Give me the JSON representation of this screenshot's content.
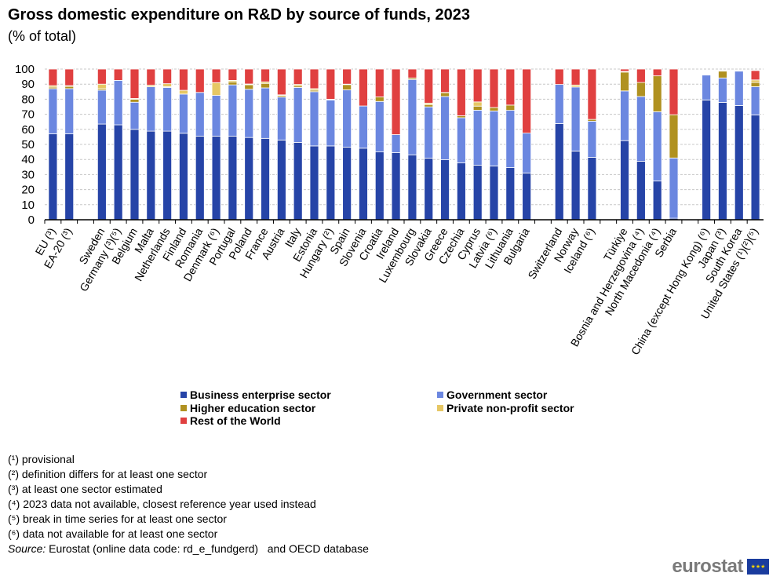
{
  "title": "Gross domestic expenditure on R&D by source of funds, 2023",
  "subtitle": "(% of total)",
  "colors": {
    "business": "#2644A7",
    "government": "#6B87E0",
    "higher_education": "#B09120",
    "private_non_profit": "#E6C764",
    "rest_of_world": "#E04040"
  },
  "chart_data": {
    "type": "bar",
    "stacked": true,
    "title": "Gross domestic expenditure on R&D by source of funds, 2023",
    "subtitle": "(% of total)",
    "ylim": [
      0,
      100
    ],
    "yticks": [
      0,
      10,
      20,
      30,
      40,
      50,
      60,
      70,
      80,
      90,
      100
    ],
    "grid": true,
    "legend_position": "bottom",
    "categories": [
      "EU (³)",
      "EA-20 (³)",
      "",
      "Sweden",
      "Germany (³)(⁵)",
      "Belgium",
      "Malta",
      "Netherlands",
      "Finland",
      "Romania",
      "Denmark (⁶)",
      "Portugal",
      "Poland",
      "France",
      "Austria",
      "Italy",
      "Estonia",
      "Hungary (²)",
      "Spain",
      "Slovenia",
      "Croatia",
      "Ireland",
      "Luxembourg",
      "Slovakia",
      "Greece",
      "Czechia",
      "Cyprus",
      "Latvia (⁶)",
      "Lithuania",
      "Bulgaria",
      "",
      "Switzerland",
      "Norway",
      "Iceland (⁶)",
      "",
      "Türkiye",
      "Bosnia and Herzegovina (⁴)",
      "North Macedonia (⁴)",
      "Serbia",
      "",
      "China (except Hong Kong) (⁶)",
      "Japan (³)",
      "South Korea",
      "United States (¹)(²)(⁵)"
    ],
    "series": [
      {
        "name": "Business enterprise sector",
        "key": "business",
        "values": [
          57,
          57,
          null,
          63.5,
          63,
          60,
          58.8,
          58.8,
          57.4,
          55.5,
          55.5,
          55.5,
          54.6,
          54,
          52.9,
          51.3,
          49,
          49,
          48.2,
          47.5,
          45,
          44.5,
          43.1,
          40.9,
          39.8,
          37.7,
          36.2,
          35.7,
          34.6,
          31,
          null,
          63.8,
          45.6,
          41.4,
          null,
          52.5,
          38.8,
          25.7,
          1,
          null,
          79.5,
          77.9,
          75.8,
          69.6
        ]
      },
      {
        "name": "Government sector",
        "key": "government",
        "values": [
          30,
          30,
          null,
          22.5,
          29.5,
          18,
          29.5,
          29,
          26,
          29,
          27,
          34,
          32,
          33.5,
          28.5,
          36.5,
          36,
          30.5,
          38,
          28,
          33.5,
          12,
          50,
          34,
          42,
          30,
          36.5,
          36.5,
          38,
          26.5,
          null,
          26,
          42.5,
          24,
          null,
          33,
          43,
          46,
          40,
          null,
          16.5,
          16.2,
          22.8,
          18.7
        ]
      },
      {
        "name": "Higher education sector",
        "key": "higher_education",
        "values": [
          1,
          1.5,
          null,
          1,
          0,
          2,
          0,
          0.5,
          0,
          0,
          0,
          2,
          3,
          3,
          1,
          1,
          1,
          0,
          3.5,
          0,
          3,
          0,
          1,
          1.5,
          2.5,
          1.3,
          2.7,
          2.3,
          3.5,
          0,
          null,
          0,
          0,
          1.2,
          null,
          12.5,
          9.3,
          23.8,
          28.7,
          null,
          0,
          4.5,
          0,
          2.8
        ]
      },
      {
        "name": "Private non-profit sector",
        "key": "private_non_profit",
        "values": [
          1,
          0.5,
          null,
          3,
          0,
          0.5,
          1,
          2,
          2.5,
          0,
          8.5,
          1,
          0.5,
          1,
          0.5,
          1,
          1,
          0.5,
          0.3,
          0,
          0,
          0,
          0,
          1,
          0.2,
          0,
          2.8,
          0,
          0,
          0,
          null,
          0,
          1.3,
          0,
          null,
          0.5,
          0,
          0,
          0,
          null,
          0,
          0,
          0,
          1.7
        ]
      },
      {
        "name": "Rest of the World",
        "key": "rest_of_world",
        "values": [
          11,
          11,
          null,
          10,
          7.5,
          19.5,
          10.7,
          9.7,
          14.1,
          15.5,
          9,
          7.5,
          9.9,
          8.5,
          17.1,
          10.2,
          13,
          20,
          10,
          24.5,
          18.5,
          43.5,
          5.9,
          22.6,
          15.5,
          31,
          21.8,
          25.5,
          23.9,
          42.5,
          null,
          10.2,
          10.6,
          33.4,
          null,
          1.5,
          8.9,
          4.5,
          30.3,
          null,
          0,
          0,
          0,
          6.2
        ]
      }
    ]
  },
  "legend": {
    "business": "Business enterprise sector",
    "government": "Government sector",
    "higher_education": "Higher education sector",
    "private_non_profit": "Private non-profit sector",
    "rest_of_world": "Rest of the World"
  },
  "footnotes": [
    "(¹) provisional",
    "(²) definition differs for at least one sector",
    "(³) at least one sector estimated",
    "(⁴) 2023 data not available, closest reference year used instead",
    "(⁵) break in time series for at least one sector",
    "(⁶) data not available for at least one sector"
  ],
  "source": {
    "label": "Source:",
    "text": " Eurostat (online data code: rd_e_fundgerd)   and OECD database"
  },
  "logo": {
    "text": "eurostat",
    "icon": "eu-flag-icon"
  }
}
